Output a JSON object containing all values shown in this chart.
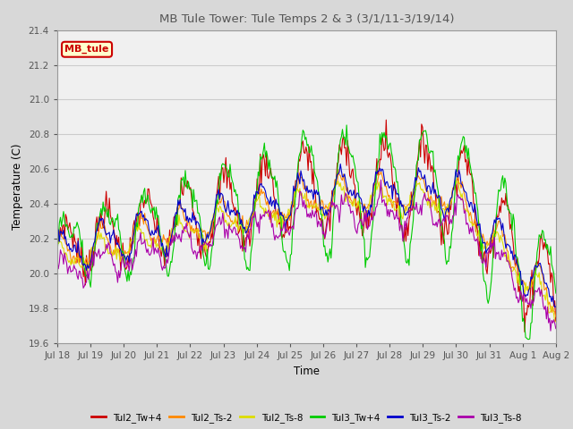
{
  "title": "MB Tule Tower: Tule Temps 2 & 3 (3/1/11-3/19/14)",
  "xlabel": "Time",
  "ylabel": "Temperature (C)",
  "ylim": [
    19.6,
    21.4
  ],
  "yticks": [
    19.6,
    19.8,
    20.0,
    20.2,
    20.4,
    20.6,
    20.8,
    21.0,
    21.2,
    21.4
  ],
  "xtick_labels": [
    "Jul 18",
    "Jul 19",
    "Jul 20",
    "Jul 21",
    "Jul 22",
    "Jul 23",
    "Jul 24",
    "Jul 25",
    "Jul 26",
    "Jul 27",
    "Jul 28",
    "Jul 29",
    "Jul 30",
    "Jul 31",
    "Aug 1",
    "Aug 2"
  ],
  "legend_label": "MB_tule",
  "series_colors": [
    "#cc0000",
    "#ff8800",
    "#dddd00",
    "#00cc00",
    "#0000cc",
    "#aa00aa"
  ],
  "series_names": [
    "Tul2_Tw+4",
    "Tul2_Ts-2",
    "Tul2_Ts-8",
    "Tul3_Tw+4",
    "Tul3_Ts-2",
    "Tul3_Ts-8"
  ],
  "background_color": "#d8d8d8",
  "plot_bg_color": "#f0f0f0",
  "n_points": 480
}
